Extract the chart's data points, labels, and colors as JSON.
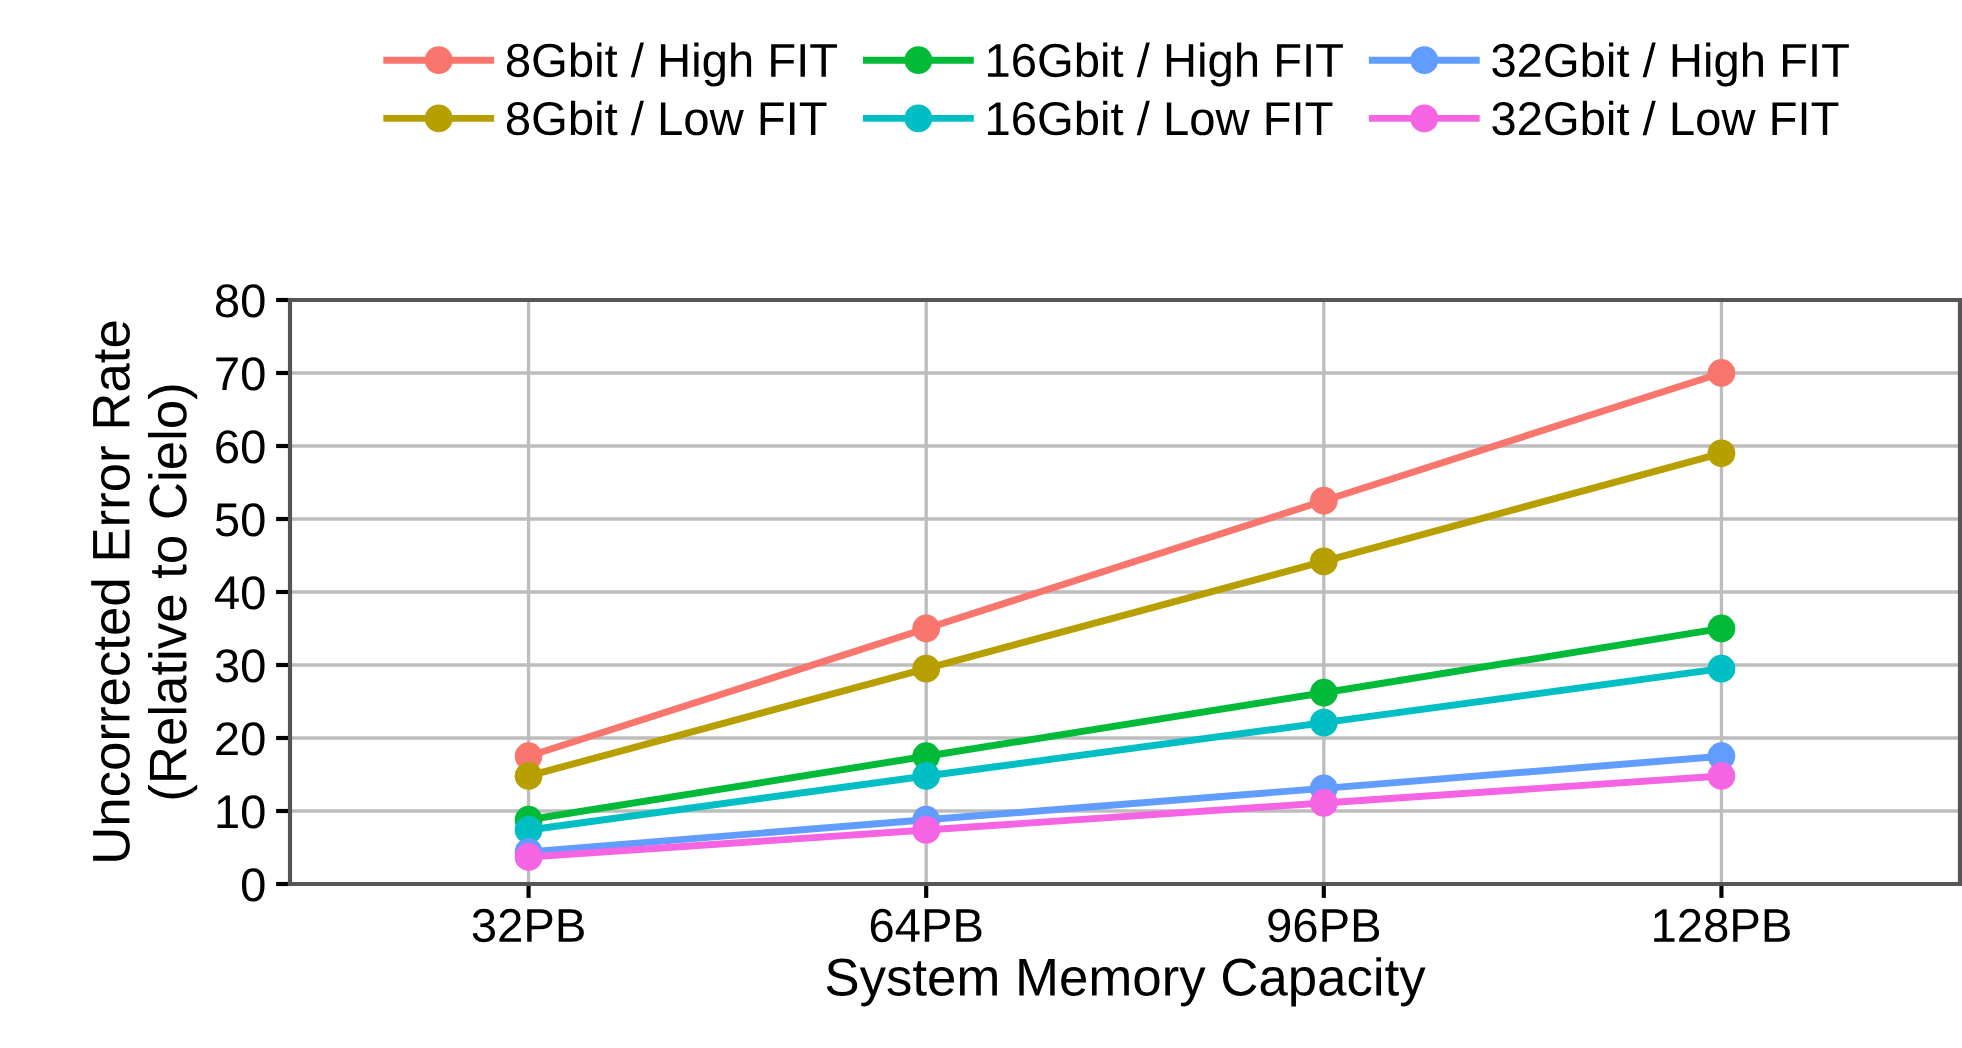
{
  "chart_data": {
    "type": "line",
    "xlabel": "System Memory Capacity",
    "ylabel": "Uncorrected Error Rate\n(Relative to Cielo)",
    "categories": [
      "32PB",
      "64PB",
      "96PB",
      "128PB"
    ],
    "series": [
      {
        "name": "8Gbit / High FIT",
        "color": "#f8766d",
        "values": [
          17.5,
          35,
          52.5,
          70
        ]
      },
      {
        "name": "8Gbit / Low FIT",
        "color": "#b79f00",
        "values": [
          14.8,
          29.5,
          44.2,
          59
        ]
      },
      {
        "name": "16Gbit / High FIT",
        "color": "#00ba38",
        "values": [
          8.8,
          17.5,
          26.2,
          35
        ]
      },
      {
        "name": "16Gbit / Low FIT",
        "color": "#00bfc4",
        "values": [
          7.4,
          14.8,
          22.1,
          29.5
        ]
      },
      {
        "name": "32Gbit / High FIT",
        "color": "#619cff",
        "values": [
          4.4,
          8.8,
          13.1,
          17.5
        ]
      },
      {
        "name": "32Gbit / Low FIT",
        "color": "#f564e3",
        "values": [
          3.7,
          7.4,
          11.1,
          14.8
        ]
      }
    ],
    "ylim": [
      0,
      80
    ],
    "yticks": [
      0,
      10,
      20,
      30,
      40,
      50,
      60,
      70,
      80
    ],
    "grid": true,
    "legend": "top",
    "marker": "circle",
    "line_style": "solid"
  }
}
